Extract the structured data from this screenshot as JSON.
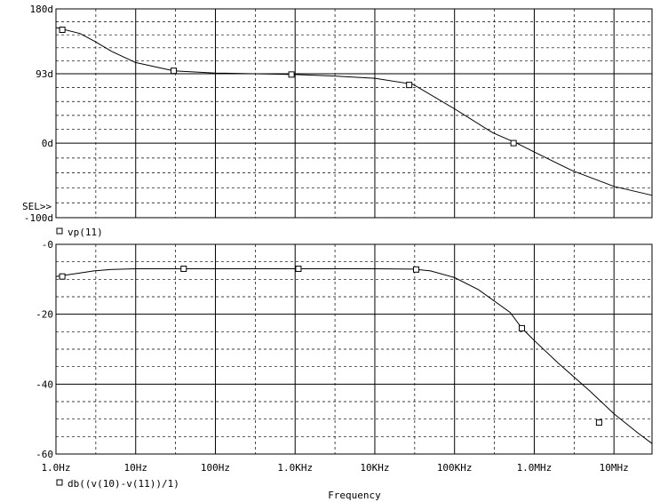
{
  "chart_data": [
    {
      "type": "line",
      "x_scale": "log",
      "xlim": [
        1,
        30000000
      ],
      "ylim": [
        -100,
        180
      ],
      "ytick_labels": [
        {
          "value": 180,
          "label": "180d"
        },
        {
          "value": 93,
          "label": "93d"
        },
        {
          "value": 0,
          "label": "0d"
        },
        {
          "value": -100,
          "label": "-100d"
        }
      ],
      "cursor_label": "SEL>>",
      "legend": [
        {
          "marker": "square",
          "text": "vp(11)"
        }
      ],
      "series": [
        {
          "name": "vp(11)",
          "x": [
            1,
            2,
            3,
            5,
            10,
            30,
            100,
            300,
            1000,
            3000,
            10000,
            30000,
            100000,
            300000,
            600000,
            1000000,
            3000000,
            10000000,
            30000000
          ],
          "y": [
            155,
            147,
            137,
            123,
            108,
            97,
            94,
            93,
            92,
            90,
            87,
            79,
            46,
            14,
            0,
            -12,
            -37,
            -58,
            -70
          ]
        }
      ],
      "markers": {
        "x": [
          1.2,
          30,
          900,
          27000,
          550000
        ],
        "y": [
          152,
          97,
          92,
          78,
          0
        ]
      }
    },
    {
      "type": "line",
      "x_scale": "log",
      "xlim": [
        1,
        30000000
      ],
      "ylim": [
        -60,
        0
      ],
      "ytick_labels": [
        {
          "value": 0,
          "label": "-0"
        },
        {
          "value": -20,
          "label": "-20"
        },
        {
          "value": -40,
          "label": "-40"
        },
        {
          "value": -60,
          "label": "-60"
        }
      ],
      "xtick_labels": [
        {
          "value": 1,
          "label": "1.0Hz"
        },
        {
          "value": 10,
          "label": "10Hz"
        },
        {
          "value": 100,
          "label": "100Hz"
        },
        {
          "value": 1000,
          "label": "1.0KHz"
        },
        {
          "value": 10000,
          "label": "10KHz"
        },
        {
          "value": 100000,
          "label": "100KHz"
        },
        {
          "value": 1000000,
          "label": "1.0MHz"
        },
        {
          "value": 10000000,
          "label": "10MHz"
        }
      ],
      "xlabel": "Frequency",
      "legend": [
        {
          "marker": "square",
          "text": "db((v(10)-v(11))/1)"
        }
      ],
      "series": [
        {
          "name": "db((v(10)-v(11))/1)",
          "x": [
            1,
            2,
            3,
            5,
            10,
            30,
            100,
            1000,
            10000,
            30000,
            50000,
            100000,
            200000,
            500000,
            700000,
            1000000,
            2000000,
            5000000,
            10000000,
            20000000,
            30000000
          ],
          "y": [
            -9.2,
            -8.2,
            -7.6,
            -7.2,
            -7.0,
            -7.0,
            -7.0,
            -7.0,
            -7.0,
            -7.1,
            -7.6,
            -9.5,
            -13,
            -19.5,
            -24,
            -27.5,
            -34,
            -42,
            -48.5,
            -54,
            -57
          ]
        }
      ],
      "markers": {
        "x": [
          1.2,
          40,
          1100,
          33000,
          700000,
          6500000
        ],
        "y": [
          -9.2,
          -7.0,
          -7.0,
          -7.2,
          -24,
          -51
        ]
      }
    }
  ]
}
